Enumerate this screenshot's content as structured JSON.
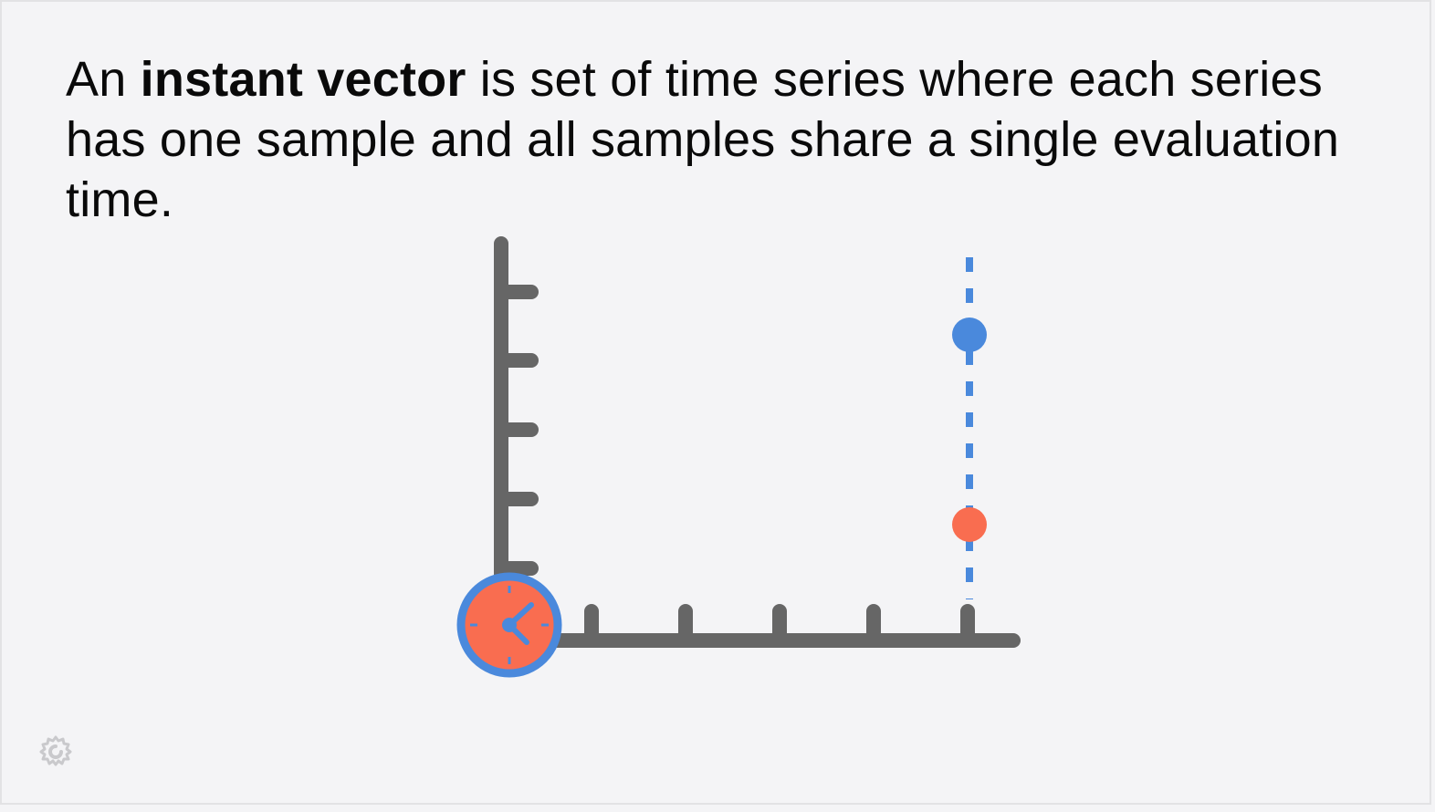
{
  "headline": {
    "prefix": "An ",
    "emphasis": "instant vector",
    "suffix": " is set of time series where each series has one sample and all samples share a single evaluation time."
  },
  "diagram": {
    "axis_color": "#666666",
    "eval_line_color": "#4a89dc",
    "samples": [
      {
        "series": "blue",
        "color": "#4a89dc"
      },
      {
        "series": "orange",
        "color": "#f96d50"
      }
    ],
    "clock": {
      "face_color": "#f96d50",
      "ring_color": "#4a89dc"
    }
  },
  "logo": {
    "icon": "grafana-logo-icon"
  }
}
